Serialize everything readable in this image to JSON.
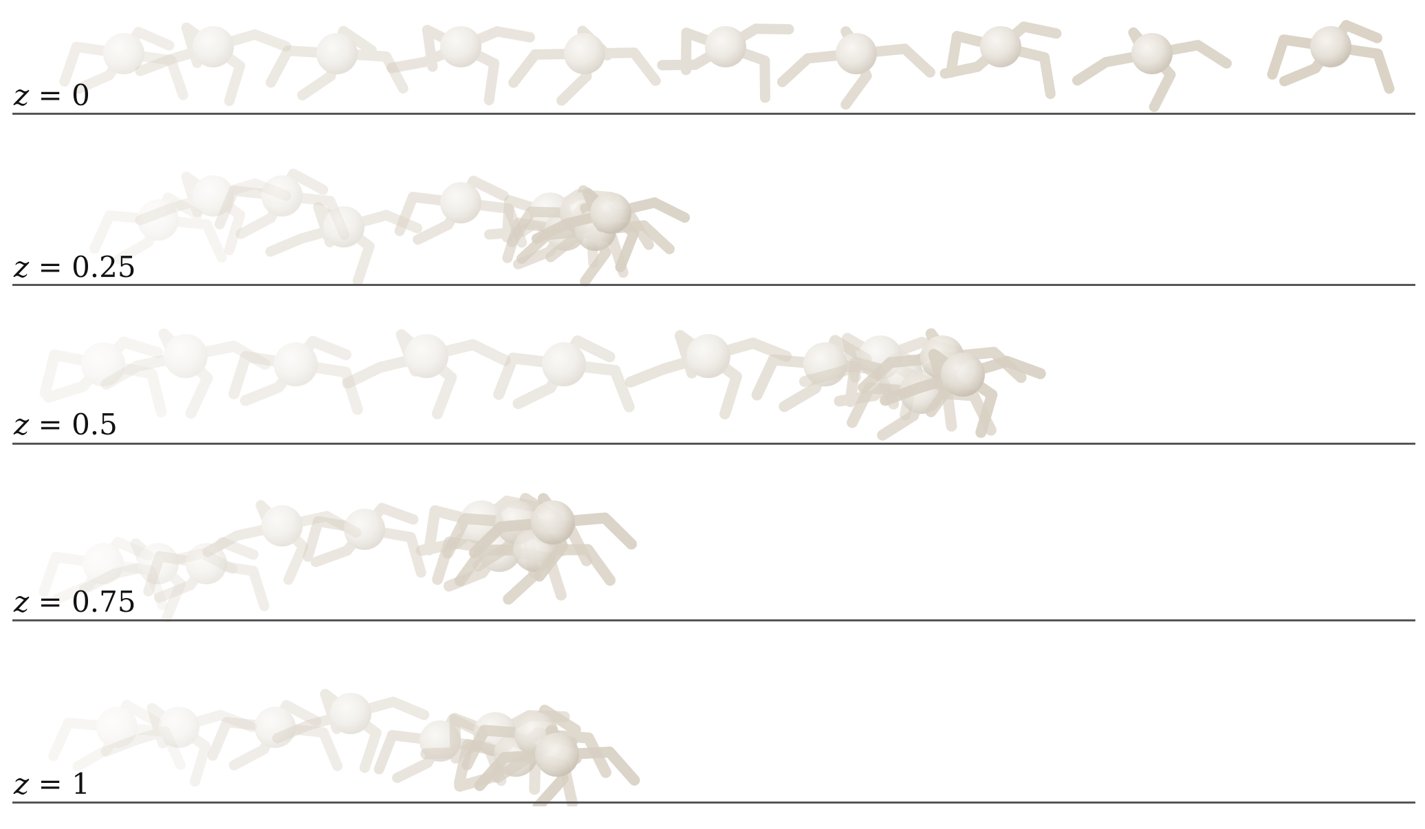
{
  "figure": {
    "panels": [
      {
        "variable": "z",
        "equals": "=",
        "value": "0",
        "trail": "spread"
      },
      {
        "variable": "z",
        "equals": "=",
        "value": "0.25",
        "trail": "collapse"
      },
      {
        "variable": "z",
        "equals": "=",
        "value": "0.5",
        "trail": "partial"
      },
      {
        "variable": "z",
        "equals": "=",
        "value": "0.75",
        "trail": "collapse"
      },
      {
        "variable": "z",
        "equals": "=",
        "value": "1",
        "trail": "collapse"
      }
    ],
    "colors": {
      "body": "#e4dfd6",
      "body_dark": "#c9c0b2",
      "leg": "#d8d0c3",
      "ground_line": "#555555",
      "label_text": "#111111",
      "background": "#ffffff"
    }
  }
}
